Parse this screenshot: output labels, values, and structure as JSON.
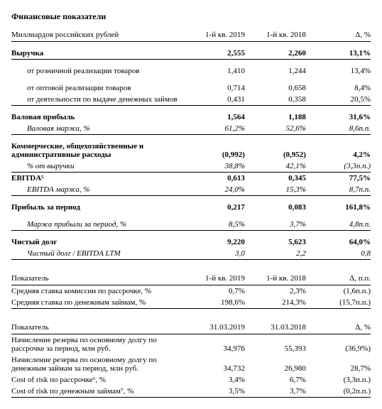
{
  "title": "Финансовые показатели",
  "t1": {
    "h": {
      "c0": "Миллиардов российских рублей",
      "c1": "1-й кв. 2019",
      "c2": "1-й кв. 2018",
      "c3": "Δ, %"
    },
    "rows": [
      {
        "label": "Выручка",
        "v1": "2,555",
        "v2": "2,260",
        "d": "13,1%",
        "bold": true,
        "bb": true
      },
      {
        "sp": true
      },
      {
        "label": "от розничной реализации товаров",
        "v1": "1,410",
        "v2": "1,244",
        "d": "13,4%",
        "indent": true
      },
      {
        "sp": true
      },
      {
        "label": "от оптовой реализации товаров",
        "v1": "0,714",
        "v2": "0,658",
        "d": "8,4%",
        "indent": true
      },
      {
        "label": "от деятельности по выдаче денежных займов",
        "v1": "0,431",
        "v2": "0,358",
        "d": "20,5%",
        "indent": true,
        "bb": true,
        "wrap": true
      },
      {
        "sp": true
      },
      {
        "label": "Валовая прибыль",
        "v1": "1,564",
        "v2": "1,188",
        "d": "31,6%",
        "bold": true
      },
      {
        "label": "Валовая маржа, %",
        "v1": "61,2%",
        "v2": "52,6%",
        "d": "8,6п.п.",
        "italic": true,
        "indent": true,
        "bb": true
      },
      {
        "sp": true
      },
      {
        "label": "Коммерческие, общехозяйственные и административные расходы",
        "v1": "(0,992)",
        "v2": "(0,952)",
        "d": "4,2%",
        "bold": true,
        "wrap": true
      },
      {
        "label": "% от выручки",
        "v1": "38,8%",
        "v2": "42,1%",
        "d": "(3,3п.п.)",
        "italic": true,
        "indent": true,
        "bb": true
      },
      {
        "label": "EBITDA⁵",
        "v1": "0,613",
        "v2": "0,345",
        "d": "77,5%",
        "bold": true
      },
      {
        "label": "EBITDA маржа, %",
        "v1": "24,0%",
        "v2": "15,3%",
        "d": "8,7п.п.",
        "italic": true,
        "indent": true,
        "bb": true
      },
      {
        "sp": true
      },
      {
        "label": "Прибыль за период",
        "v1": "0,217",
        "v2": "0,083",
        "d": "161,8%",
        "bold": true
      },
      {
        "sp": true
      },
      {
        "label": "Маржа прибыли за период, %",
        "v1": "8,5%",
        "v2": "3,7%",
        "d": "4,8п.п.",
        "italic": true,
        "indent": true,
        "bb": true
      },
      {
        "sp": true
      },
      {
        "label": "Чистый долг",
        "v1": "9,220",
        "v2": "5,623",
        "d": "64,0%",
        "bold": true
      },
      {
        "label": "Чистый долг / EBITDA LTM",
        "v1": "3,0",
        "v2": "2,2",
        "d": "0,8",
        "italic": true,
        "indent": true,
        "bb": true
      }
    ]
  },
  "t2": {
    "h": {
      "c0": "Показатель",
      "c1": "1-й кв. 2019",
      "c2": "1-й кв. 2018",
      "c3": "Δ, п.п."
    },
    "rows": [
      {
        "label": "Средняя ставка комиссии по рассрочке, %",
        "v1": "0,7%",
        "v2": "2,3%",
        "d": "(1,6п.п.)"
      },
      {
        "label": "Средняя ставка по денежным займам, %",
        "v1": "198,6%",
        "v2": "214,3%",
        "d": "(15,7п.п.)",
        "bb": true
      }
    ]
  },
  "t3": {
    "h": {
      "c0": "Показатель",
      "c1": "31.03.2019",
      "c2": "31.03.2018",
      "c3": "Δ, %"
    },
    "rows": [
      {
        "label": "Начисление резерва по основному долгу по рассрочке за период, млн руб.",
        "v1": "34,976",
        "v2": "55,393",
        "d": "(36,9%)"
      },
      {
        "label": "Начисление резерва по основному долгу по денежным займам за период, млн руб.",
        "v1": "34,732",
        "v2": "26,980",
        "d": "28,7%"
      },
      {
        "label": "Cost of risk по рассрочке⁶, %",
        "v1": "3,4%",
        "v2": "6,7%",
        "d": "(3,3п.п.)"
      },
      {
        "label": "Cost of risk по денежным займам⁷, %",
        "v1": "3,5%",
        "v2": "3,7%",
        "d": "(0,2п.п.)",
        "bb": true
      }
    ]
  }
}
